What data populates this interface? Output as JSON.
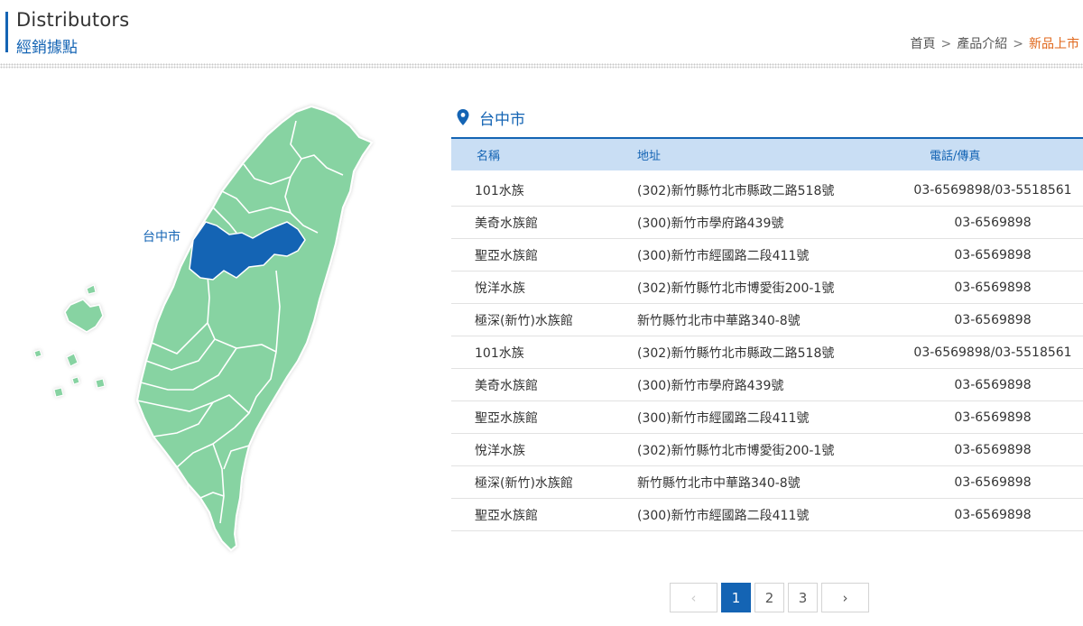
{
  "header": {
    "title_en": "Distributors",
    "title_zh": "經銷據點",
    "breadcrumb": [
      {
        "label": "首頁",
        "current": false
      },
      {
        "label": "產品介紹",
        "current": false
      },
      {
        "label": "新品上市",
        "current": true
      }
    ],
    "breadcrumb_sep": ">"
  },
  "map": {
    "selected_region": "台中市",
    "colors": {
      "land": "#87d3a2",
      "selected": "#1464b4",
      "outline": "#ffffff"
    }
  },
  "region": {
    "icon": "map-pin-icon",
    "name": "台中市"
  },
  "table": {
    "columns": [
      "名稱",
      "地址",
      "電話/傳真"
    ],
    "rows": [
      [
        "101水族",
        "(302)新竹縣竹北市縣政二路518號",
        "03-6569898/03-5518561"
      ],
      [
        "美奇水族館",
        "(300)新竹市學府路439號",
        "03-6569898"
      ],
      [
        "聖亞水族館",
        "(300)新竹市經國路二段411號",
        "03-6569898"
      ],
      [
        "悅洋水族",
        "(302)新竹縣竹北市博愛街200-1號",
        "03-6569898"
      ],
      [
        "極深(新竹)水族館",
        "新竹縣竹北市中華路340-8號",
        "03-6569898"
      ],
      [
        "101水族",
        "(302)新竹縣竹北市縣政二路518號",
        "03-6569898/03-5518561"
      ],
      [
        "美奇水族館",
        "(300)新竹市學府路439號",
        "03-6569898"
      ],
      [
        "聖亞水族館",
        "(300)新竹市經國路二段411號",
        "03-6569898"
      ],
      [
        "悅洋水族",
        "(302)新竹縣竹北市博愛街200-1號",
        "03-6569898"
      ],
      [
        "極深(新竹)水族館",
        "新竹縣竹北市中華路340-8號",
        "03-6569898"
      ],
      [
        "聖亞水族館",
        "(300)新竹市經國路二段411號",
        "03-6569898"
      ]
    ]
  },
  "pagination": {
    "prev": "‹",
    "next": "›",
    "pages": [
      "1",
      "2",
      "3"
    ],
    "current": "1",
    "prev_disabled": true
  },
  "colors": {
    "accent": "#1464b4",
    "breadcrumb_current": "#e0661a",
    "table_header_bg": "#c9def4"
  }
}
